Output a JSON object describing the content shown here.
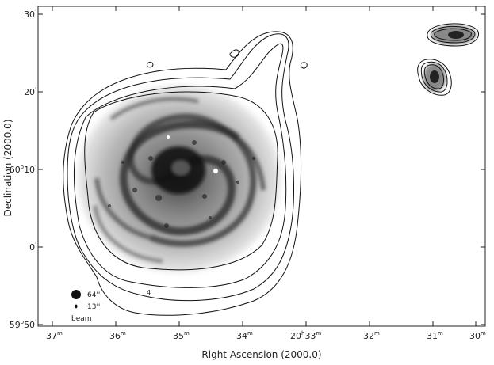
{
  "figure": {
    "ylabel": "Declination (2000.0)",
    "xlabel": "Right Ascension (2000.0)",
    "x_ticks": [
      {
        "main": "37",
        "sup": "m"
      },
      {
        "main": "36",
        "sup": "m"
      },
      {
        "main": "35",
        "sup": "m"
      },
      {
        "main": "34",
        "sup": "m"
      },
      {
        "main": "20",
        "sup": "h",
        "main2": "33",
        "sup2": "m"
      },
      {
        "main": "32",
        "sup": "m"
      },
      {
        "main": "31",
        "sup": "m"
      },
      {
        "main": "30",
        "sup": "m"
      }
    ],
    "y_ticks": [
      {
        "main": "30",
        "sup": "'"
      },
      {
        "main": "20",
        "sup": "'"
      },
      {
        "main": "60",
        "sup": "o",
        "main2": "10",
        "sup2": "'"
      },
      {
        "main": "0",
        "sup": "'"
      },
      {
        "main": "59",
        "sup": "o",
        "main2": "50",
        "sup2": "'"
      }
    ],
    "beam": {
      "large": "64''",
      "small": "13''",
      "label": "beam"
    },
    "annotation": "4"
  }
}
